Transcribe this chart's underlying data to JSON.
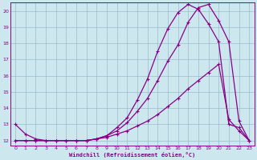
{
  "bg_color": "#cce8ee",
  "line_color": "#880088",
  "grid_color": "#99bbcc",
  "xlabel": "Windchill (Refroidissement éolien,°C)",
  "xlim": [
    -0.5,
    23.5
  ],
  "ylim": [
    11.7,
    20.5
  ],
  "yticks": [
    12,
    13,
    14,
    15,
    16,
    17,
    18,
    19,
    20
  ],
  "xticks": [
    0,
    1,
    2,
    3,
    4,
    5,
    6,
    7,
    8,
    9,
    10,
    11,
    12,
    13,
    14,
    15,
    16,
    17,
    18,
    19,
    20,
    21,
    22,
    23
  ],
  "curve1_x": [
    0,
    1,
    2,
    3,
    4,
    5,
    6,
    7,
    8,
    9,
    10,
    11,
    12,
    13,
    14,
    15,
    16,
    17,
    18,
    19,
    20,
    21,
    22,
    23
  ],
  "curve1_y": [
    13.0,
    12.4,
    12.1,
    12.0,
    12.0,
    12.0,
    12.0,
    12.0,
    12.1,
    12.3,
    12.8,
    13.4,
    14.5,
    15.8,
    17.5,
    18.9,
    19.9,
    20.4,
    20.1,
    19.2,
    18.1,
    13.0,
    12.8,
    12.0
  ],
  "curve2_x": [
    0,
    1,
    2,
    3,
    4,
    5,
    6,
    7,
    8,
    9,
    10,
    11,
    12,
    13,
    14,
    15,
    16,
    17,
    18,
    19,
    20,
    21,
    22,
    23
  ],
  "curve2_y": [
    12.0,
    12.0,
    12.0,
    12.0,
    12.0,
    12.0,
    12.0,
    12.0,
    12.1,
    12.2,
    12.4,
    12.6,
    12.9,
    13.2,
    13.6,
    14.1,
    14.6,
    15.2,
    15.7,
    16.2,
    16.7,
    13.3,
    12.6,
    12.0
  ],
  "curve3_x": [
    0,
    1,
    2,
    3,
    4,
    5,
    6,
    7,
    8,
    9,
    10,
    11,
    12,
    13,
    14,
    15,
    16,
    17,
    18,
    19,
    20,
    21,
    22,
    23
  ],
  "curve3_y": [
    12.0,
    12.0,
    12.0,
    12.0,
    12.0,
    12.0,
    12.0,
    12.0,
    12.1,
    12.3,
    12.6,
    13.1,
    13.8,
    14.6,
    15.7,
    16.9,
    17.9,
    19.3,
    20.2,
    20.4,
    19.4,
    18.1,
    13.2,
    12.0
  ]
}
